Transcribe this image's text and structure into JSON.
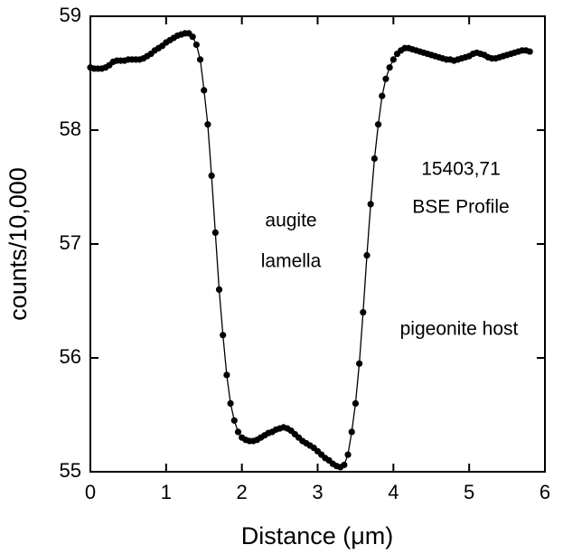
{
  "chart_data": {
    "type": "line",
    "x_label": "Distance (μm)",
    "y_label": "counts/10,000",
    "annotations": [
      "15403,71",
      "BSE Profile",
      "augite",
      "lamella",
      "pigeonite host"
    ],
    "color": "#000000",
    "markers": true,
    "xlim": [
      0,
      6
    ],
    "xticks": [
      0,
      1,
      2,
      3,
      4,
      5,
      6
    ],
    "ylim": [
      55,
      59
    ],
    "yticks": [
      55,
      56,
      57,
      58,
      59
    ],
    "x": [
      0,
      0.05,
      0.1,
      0.15,
      0.2,
      0.25,
      0.3,
      0.35,
      0.4,
      0.45,
      0.5,
      0.55,
      0.6,
      0.65,
      0.7,
      0.75,
      0.8,
      0.85,
      0.9,
      0.95,
      1.0,
      1.05,
      1.1,
      1.15,
      1.2,
      1.25,
      1.3,
      1.35,
      1.4,
      1.45,
      1.5,
      1.55,
      1.6,
      1.65,
      1.7,
      1.75,
      1.8,
      1.85,
      1.9,
      1.95,
      2.0,
      2.05,
      2.1,
      2.15,
      2.2,
      2.25,
      2.3,
      2.35,
      2.4,
      2.45,
      2.5,
      2.55,
      2.6,
      2.65,
      2.7,
      2.75,
      2.8,
      2.85,
      2.9,
      2.95,
      3.0,
      3.05,
      3.1,
      3.15,
      3.2,
      3.25,
      3.3,
      3.35,
      3.4,
      3.45,
      3.5,
      3.55,
      3.6,
      3.65,
      3.7,
      3.75,
      3.8,
      3.85,
      3.9,
      3.95,
      4.0,
      4.05,
      4.1,
      4.15,
      4.2,
      4.25,
      4.3,
      4.35,
      4.4,
      4.45,
      4.5,
      4.55,
      4.6,
      4.65,
      4.7,
      4.75,
      4.8,
      4.85,
      4.9,
      4.95,
      5.0,
      5.05,
      5.1,
      5.15,
      5.2,
      5.25,
      5.3,
      5.35,
      5.4,
      5.45,
      5.5,
      5.55,
      5.6,
      5.65,
      5.7,
      5.75,
      5.8
    ],
    "values": [
      58.55,
      58.54,
      58.54,
      58.54,
      58.55,
      58.57,
      58.6,
      58.61,
      58.61,
      58.61,
      58.62,
      58.62,
      58.62,
      58.62,
      58.63,
      58.65,
      58.67,
      58.7,
      58.72,
      58.74,
      58.77,
      58.79,
      58.81,
      58.83,
      58.84,
      58.85,
      58.85,
      58.82,
      58.75,
      58.62,
      58.35,
      58.05,
      57.6,
      57.1,
      56.6,
      56.2,
      55.85,
      55.6,
      55.45,
      55.35,
      55.3,
      55.28,
      55.27,
      55.27,
      55.28,
      55.3,
      55.32,
      55.34,
      55.35,
      55.37,
      55.38,
      55.39,
      55.38,
      55.36,
      55.33,
      55.3,
      55.27,
      55.25,
      55.23,
      55.21,
      55.18,
      55.15,
      55.12,
      55.1,
      55.07,
      55.05,
      55.04,
      55.06,
      55.15,
      55.35,
      55.6,
      55.95,
      56.4,
      56.9,
      57.35,
      57.75,
      58.05,
      58.3,
      58.45,
      58.55,
      58.62,
      58.67,
      58.7,
      58.72,
      58.72,
      58.71,
      58.7,
      58.69,
      58.68,
      58.67,
      58.66,
      58.65,
      58.64,
      58.63,
      58.62,
      58.62,
      58.61,
      58.62,
      58.63,
      58.64,
      58.65,
      58.67,
      58.68,
      58.67,
      58.66,
      58.64,
      58.63,
      58.63,
      58.64,
      58.65,
      58.66,
      58.67,
      58.68,
      58.69,
      58.7,
      58.7,
      58.69
    ]
  }
}
